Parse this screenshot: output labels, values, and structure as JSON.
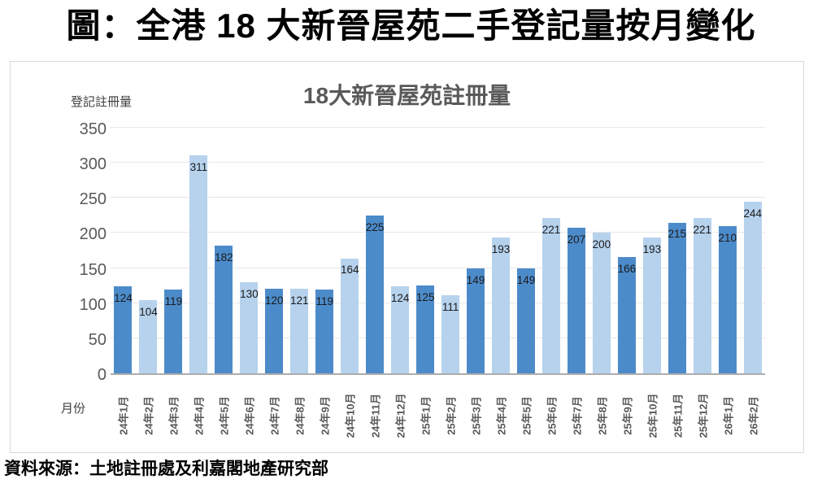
{
  "page": {
    "title": "圖：全港 18 大新晉屋苑二手登記量按月變化",
    "source": "資料來源：土地註冊處及利嘉閣地產研究部"
  },
  "chart_data": {
    "type": "bar",
    "title": "18大新晉屋苑註冊量",
    "ylabel": "登記註冊量",
    "xlabel": "月份",
    "categories": [
      "24年1月",
      "24年2月",
      "24年3月",
      "24年4月",
      "24年5月",
      "24年6月",
      "24年7月",
      "24年8月",
      "24年9月",
      "24年10月",
      "24年11月",
      "24年12月",
      "25年1月",
      "25年2月",
      "25年3月",
      "25年4月",
      "25年5月",
      "25年6月",
      "25年7月",
      "25年8月",
      "25年9月",
      "25年10月",
      "25年11月",
      "25年12月",
      "26年1月",
      "26年2月"
    ],
    "values": [
      124,
      104,
      119,
      311,
      182,
      130,
      120,
      121,
      119,
      164,
      225,
      124,
      125,
      111,
      149,
      193,
      149,
      221,
      207,
      200,
      166,
      193,
      215,
      221,
      210,
      244
    ],
    "ylim": [
      0,
      350
    ],
    "yticks": [
      0,
      50,
      100,
      150,
      200,
      250,
      300,
      350
    ],
    "grid": true,
    "legend": false,
    "data_labels": "inside-end",
    "bar_color_pattern": "alternating",
    "colors": {
      "bar_dark": "#4c8bca",
      "bar_light": "#b6d2ed",
      "gridline": "#e8e8e8",
      "axis_line": "#acacac",
      "panel_border": "#d9d9d9",
      "axis_text": "#595959"
    }
  }
}
